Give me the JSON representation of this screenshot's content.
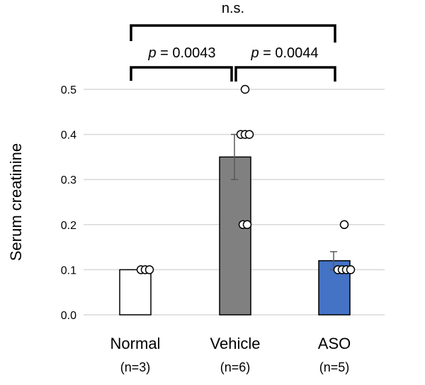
{
  "chart_data": {
    "type": "bar",
    "ylabel": "Serum creatinine",
    "ylim": [
      0,
      0.5
    ],
    "yticks": [
      "0.0",
      "0.1",
      "0.2",
      "0.3",
      "0.4",
      "0.5"
    ],
    "grid": true,
    "categories": [
      "Normal",
      "Vehicle",
      "ASO"
    ],
    "sublabels": [
      "(n=3)",
      "(n=6)",
      "(n=5)"
    ],
    "values": [
      0.1,
      0.35,
      0.12
    ],
    "errors": [
      0,
      0.05,
      0.02
    ],
    "bar_colors": [
      "#ffffff",
      "#808080",
      "#4472c4"
    ],
    "points": [
      [
        0.1,
        0.1,
        0.1
      ],
      [
        0.5,
        0.4,
        0.4,
        0.4,
        0.2,
        0.2
      ],
      [
        0.2,
        0.1,
        0.1,
        0.1,
        0.1
      ]
    ],
    "annotations": [
      {
        "from": "Normal",
        "to": "ASO",
        "label": "n.s."
      },
      {
        "from": "Normal",
        "to": "Vehicle",
        "label_italic": "p",
        "label": " = 0.0043"
      },
      {
        "from": "Vehicle",
        "to": "ASO",
        "label_italic": "p",
        "label": " = 0.0044"
      }
    ]
  }
}
